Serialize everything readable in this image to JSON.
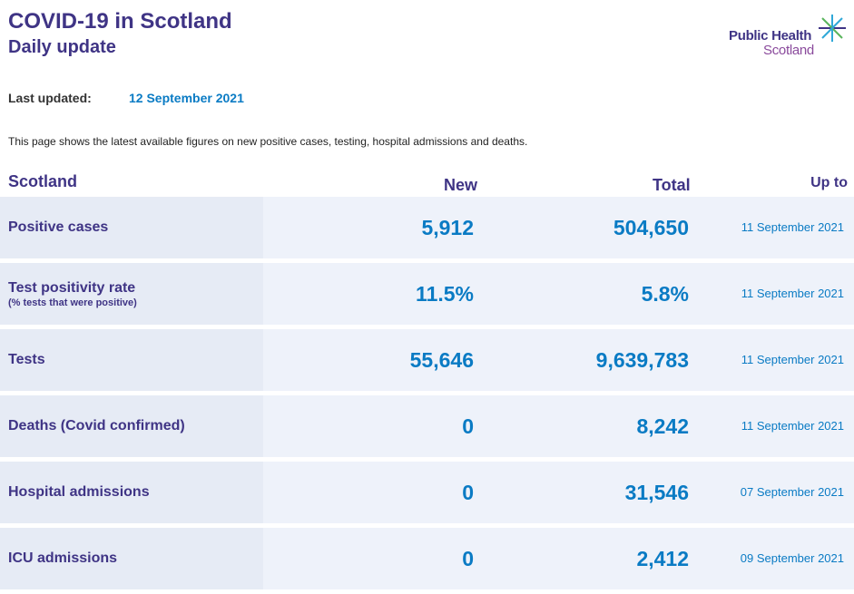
{
  "header": {
    "title": "COVID-19 in Scotland",
    "subtitle": "Daily update"
  },
  "logo": {
    "line1": "Public Health",
    "line2": "Scotland"
  },
  "last_updated": {
    "label": "Last updated:",
    "value": "12 September 2021"
  },
  "intro": "This page shows the latest available figures on new positive cases, testing, hospital admissions and deaths.",
  "table": {
    "headers": {
      "region": "Scotland",
      "new": "New",
      "total": "Total",
      "up_to": "Up to"
    },
    "rows": [
      {
        "label": "Positive cases",
        "sublabel": "",
        "new": "5,912",
        "total": "504,650",
        "up_to": "11 September 2021"
      },
      {
        "label": "Test positivity rate",
        "sublabel": "(% tests that were positive)",
        "new": "11.5%",
        "total": "5.8%",
        "up_to": "11 September 2021"
      },
      {
        "label": "Tests",
        "sublabel": "",
        "new": "55,646",
        "total": "9,639,783",
        "up_to": "11 September 2021"
      },
      {
        "label": "Deaths (Covid confirmed)",
        "sublabel": "",
        "new": "0",
        "total": "8,242",
        "up_to": "11 September 2021"
      },
      {
        "label": "Hospital admissions",
        "sublabel": "",
        "new": "0",
        "total": "31,546",
        "up_to": "07 September 2021"
      },
      {
        "label": "ICU admissions",
        "sublabel": "",
        "new": "0",
        "total": "2,412",
        "up_to": "09 September 2021"
      }
    ]
  },
  "colors": {
    "heading": "#3f3485",
    "value": "#0a7bc4",
    "label_cell_bg": "#e6ebf5",
    "data_cell_bg": "#eef2fa"
  }
}
